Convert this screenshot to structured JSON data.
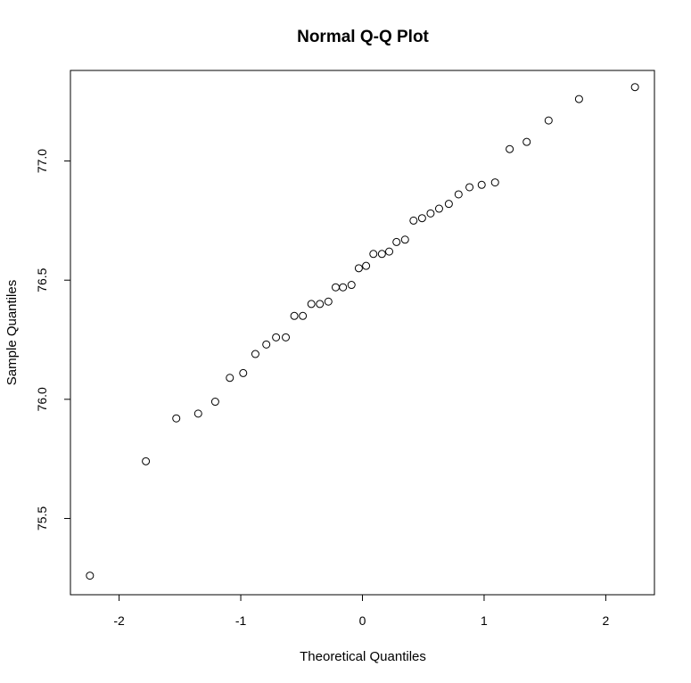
{
  "chart_data": {
    "type": "scatter",
    "title": "Normal Q-Q Plot",
    "xlabel": "Theoretical Quantiles",
    "ylabel": "Sample Quantiles",
    "xlim": [
      -2.4,
      2.4
    ],
    "ylim": [
      75.18,
      77.38
    ],
    "grid": false,
    "legend": "none",
    "x_ticks": [
      -2,
      -1,
      0,
      1,
      2
    ],
    "x_tick_labels": [
      "-2",
      "-1",
      "0",
      "1",
      "2"
    ],
    "y_ticks": [
      75.5,
      76.0,
      76.5,
      77.0
    ],
    "y_tick_labels": [
      "75.5",
      "76.0",
      "76.5",
      "77.0"
    ],
    "points": [
      {
        "x": -2.24,
        "y": 75.26
      },
      {
        "x": -1.78,
        "y": 75.74
      },
      {
        "x": -1.53,
        "y": 75.92
      },
      {
        "x": -1.35,
        "y": 75.94
      },
      {
        "x": -1.21,
        "y": 75.99
      },
      {
        "x": -1.09,
        "y": 76.09
      },
      {
        "x": -0.98,
        "y": 76.11
      },
      {
        "x": -0.88,
        "y": 76.19
      },
      {
        "x": -0.79,
        "y": 76.23
      },
      {
        "x": -0.71,
        "y": 76.26
      },
      {
        "x": -0.63,
        "y": 76.26
      },
      {
        "x": -0.56,
        "y": 76.35
      },
      {
        "x": -0.49,
        "y": 76.35
      },
      {
        "x": -0.42,
        "y": 76.4
      },
      {
        "x": -0.35,
        "y": 76.4
      },
      {
        "x": -0.28,
        "y": 76.41
      },
      {
        "x": -0.22,
        "y": 76.47
      },
      {
        "x": -0.16,
        "y": 76.47
      },
      {
        "x": -0.09,
        "y": 76.48
      },
      {
        "x": -0.03,
        "y": 76.55
      },
      {
        "x": 0.03,
        "y": 76.56
      },
      {
        "x": 0.09,
        "y": 76.61
      },
      {
        "x": 0.16,
        "y": 76.61
      },
      {
        "x": 0.22,
        "y": 76.62
      },
      {
        "x": 0.28,
        "y": 76.66
      },
      {
        "x": 0.35,
        "y": 76.67
      },
      {
        "x": 0.42,
        "y": 76.75
      },
      {
        "x": 0.49,
        "y": 76.76
      },
      {
        "x": 0.56,
        "y": 76.78
      },
      {
        "x": 0.63,
        "y": 76.8
      },
      {
        "x": 0.71,
        "y": 76.82
      },
      {
        "x": 0.79,
        "y": 76.86
      },
      {
        "x": 0.88,
        "y": 76.89
      },
      {
        "x": 0.98,
        "y": 76.9
      },
      {
        "x": 1.09,
        "y": 76.91
      },
      {
        "x": 1.21,
        "y": 77.05
      },
      {
        "x": 1.35,
        "y": 77.08
      },
      {
        "x": 1.53,
        "y": 77.17
      },
      {
        "x": 1.78,
        "y": 77.26
      },
      {
        "x": 2.24,
        "y": 77.31
      }
    ]
  }
}
